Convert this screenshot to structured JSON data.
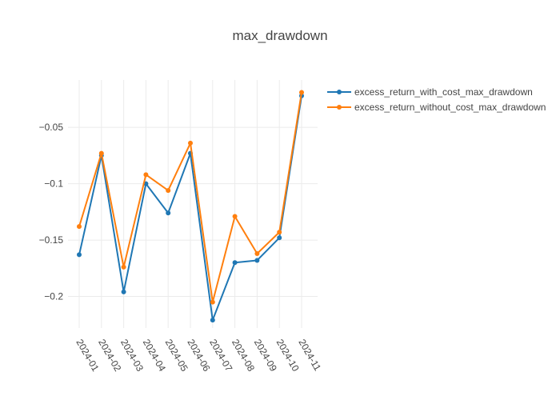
{
  "chart_data": {
    "type": "line",
    "title": "max_drawdown",
    "xlabel": "",
    "ylabel": "",
    "categories": [
      "2024-01",
      "2024-02",
      "2024-03",
      "2024-04",
      "2024-05",
      "2024-06",
      "2024-07",
      "2024-08",
      "2024-09",
      "2024-10",
      "2024-11"
    ],
    "y_ticks": [
      -0.2,
      -0.15,
      -0.1,
      -0.05
    ],
    "y_tick_labels": [
      "−0.2",
      "−0.15",
      "−0.1",
      "−0.05"
    ],
    "ylim": [
      -0.228,
      -0.008
    ],
    "grid": true,
    "legend_position": "top-right",
    "series": [
      {
        "name": "excess_return_with_cost_max_drawdown",
        "color": "#1f77b4",
        "values": [
          -0.163,
          -0.075,
          -0.196,
          -0.1,
          -0.126,
          -0.073,
          -0.221,
          -0.17,
          -0.168,
          -0.148,
          -0.022
        ]
      },
      {
        "name": "excess_return_without_cost_max_drawdown",
        "color": "#ff7f0e",
        "values": [
          -0.138,
          -0.073,
          -0.174,
          -0.092,
          -0.106,
          -0.064,
          -0.205,
          -0.129,
          -0.162,
          -0.143,
          -0.019
        ]
      }
    ]
  }
}
